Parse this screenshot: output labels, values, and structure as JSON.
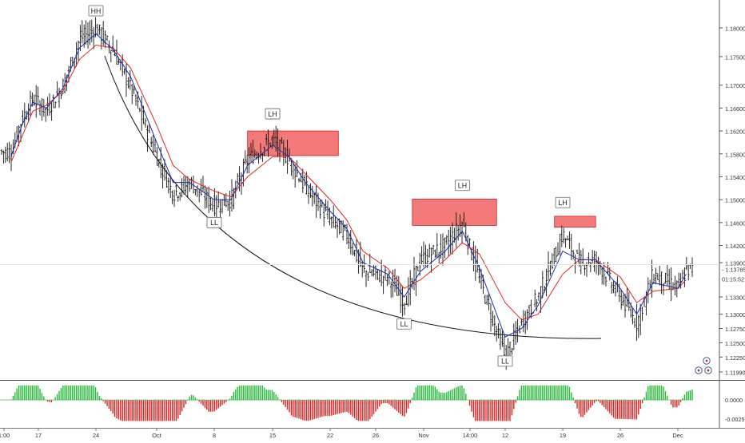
{
  "chart_data": {
    "type": "candlestick",
    "title": "",
    "xlabel": "",
    "ylabel": "",
    "ylim": [
      1.1189,
      1.1838
    ],
    "y_ticks": [
      "1.18000",
      "1.17500",
      "1.17000",
      "1.16600",
      "1.16200",
      "1.15800",
      "1.15400",
      "1.15000",
      "1.14600",
      "1.14200",
      "1.13900",
      "1.13300",
      "1.13000",
      "1.12750",
      "1.12500",
      "1.12250",
      "1.11990"
    ],
    "x_ticks": [
      "1:00",
      "17",
      "24",
      "Oct",
      "8",
      "15",
      "22",
      "26",
      "Nov",
      "14:00",
      "12",
      "19",
      "26",
      "Dec"
    ],
    "price_label": "1.13785",
    "countdown_label": "01:15:52",
    "grid": false,
    "series": [
      {
        "name": "",
        "type": "ohlc",
        "values": [
          {
            "x": "Sep 12",
            "c": 1.1584
          },
          {
            "x": "Sep 14",
            "c": 1.1641
          },
          {
            "x": "Sep 16",
            "c": 1.1676
          },
          {
            "x": "Sep 18",
            "c": 1.1655
          },
          {
            "x": "Sep 20",
            "c": 1.17
          },
          {
            "x": "Sep 22",
            "c": 1.178
          },
          {
            "x": "Sep 24",
            "c": 1.18
          },
          {
            "x": "Sep 26",
            "c": 1.176
          },
          {
            "x": "Sep 28",
            "c": 1.1695
          },
          {
            "x": "Oct 1",
            "c": 1.1575
          },
          {
            "x": "Oct 3",
            "c": 1.151
          },
          {
            "x": "Oct 5",
            "c": 1.153
          },
          {
            "x": "Oct 8",
            "c": 1.149
          },
          {
            "x": "Oct 10",
            "c": 1.15
          },
          {
            "x": "Oct 12",
            "c": 1.157
          },
          {
            "x": "Oct 15",
            "c": 1.1605
          },
          {
            "x": "Oct 17",
            "c": 1.157
          },
          {
            "x": "Oct 19",
            "c": 1.152
          },
          {
            "x": "Oct 22",
            "c": 1.1465
          },
          {
            "x": "Oct 24",
            "c": 1.144
          },
          {
            "x": "Oct 26",
            "c": 1.1375
          },
          {
            "x": "Oct 29",
            "c": 1.1365
          },
          {
            "x": "Oct 31",
            "c": 1.132
          },
          {
            "x": "Nov 2",
            "c": 1.1395
          },
          {
            "x": "Nov 5",
            "c": 1.142
          },
          {
            "x": "Nov 7",
            "c": 1.146
          },
          {
            "x": "Nov 9",
            "c": 1.136
          },
          {
            "x": "Nov 12",
            "c": 1.1225
          },
          {
            "x": "Nov 14",
            "c": 1.1285
          },
          {
            "x": "Nov 16",
            "c": 1.133
          },
          {
            "x": "Nov 19",
            "c": 1.144
          },
          {
            "x": "Nov 21",
            "c": 1.139
          },
          {
            "x": "Nov 23",
            "c": 1.1395
          },
          {
            "x": "Nov 26",
            "c": 1.133
          },
          {
            "x": "Nov 28",
            "c": 1.1285
          },
          {
            "x": "Nov 30",
            "c": 1.137
          },
          {
            "x": "Dec 3",
            "c": 1.1345
          },
          {
            "x": "Dec 4",
            "c": 1.1378
          }
        ]
      },
      {
        "name": "",
        "type": "line",
        "color": "#e02525",
        "values": [
          1.1565,
          1.161,
          1.1655,
          1.1665,
          1.169,
          1.1745,
          1.177,
          1.1765,
          1.173,
          1.163,
          1.156,
          1.1535,
          1.1515,
          1.1505,
          1.154,
          1.1575,
          1.1575,
          1.1545,
          1.15,
          1.1465,
          1.141,
          1.138,
          1.1345,
          1.136,
          1.1395,
          1.1425,
          1.1405,
          1.132,
          1.129,
          1.13,
          1.137,
          1.1395,
          1.1395,
          1.1365,
          1.132,
          1.134,
          1.1345,
          1.136
        ]
      },
      {
        "name": "",
        "type": "line",
        "color": "#1f2fb0",
        "values": [
          1.1575,
          1.163,
          1.167,
          1.166,
          1.1695,
          1.1765,
          1.179,
          1.1762,
          1.1715,
          1.16,
          1.153,
          1.153,
          1.15,
          1.15,
          1.156,
          1.1595,
          1.1575,
          1.153,
          1.148,
          1.145,
          1.139,
          1.137,
          1.133,
          1.1375,
          1.141,
          1.1445,
          1.138,
          1.126,
          1.1275,
          1.1315,
          1.141,
          1.1395,
          1.1395,
          1.1345,
          1.13,
          1.1355,
          1.1345,
          1.137
        ]
      }
    ],
    "annotations": [
      {
        "label": "HH",
        "x": "Sep 24",
        "y": 1.183
      },
      {
        "label": "LH",
        "x": "Oct 15",
        "y": 1.165
      },
      {
        "label": "LL",
        "x": "Oct 8",
        "y": 1.146
      },
      {
        "label": "LH",
        "x": "Nov 7",
        "y": 1.1525
      },
      {
        "label": "LL",
        "x": "Oct 31",
        "y": 1.1283
      },
      {
        "label": "LH",
        "x": "Nov 19",
        "y": 1.1495
      },
      {
        "label": "LL",
        "x": "Nov 12",
        "y": 1.1218
      }
    ],
    "zones": [
      {
        "from": "Oct 12",
        "to": "Oct 23",
        "top": 1.162,
        "bottom": 1.1577
      },
      {
        "from": "Nov 1",
        "to": "Nov 11",
        "top": 1.1501,
        "bottom": 1.1455
      },
      {
        "from": "Nov 18",
        "to": "Nov 23",
        "top": 1.1471,
        "bottom": 1.1452
      }
    ],
    "oscillator": {
      "tick_labels": [
        "0.0000",
        "-0.0025"
      ],
      "positive_color": "#22bb33",
      "negative_color": "#dd2222"
    }
  }
}
